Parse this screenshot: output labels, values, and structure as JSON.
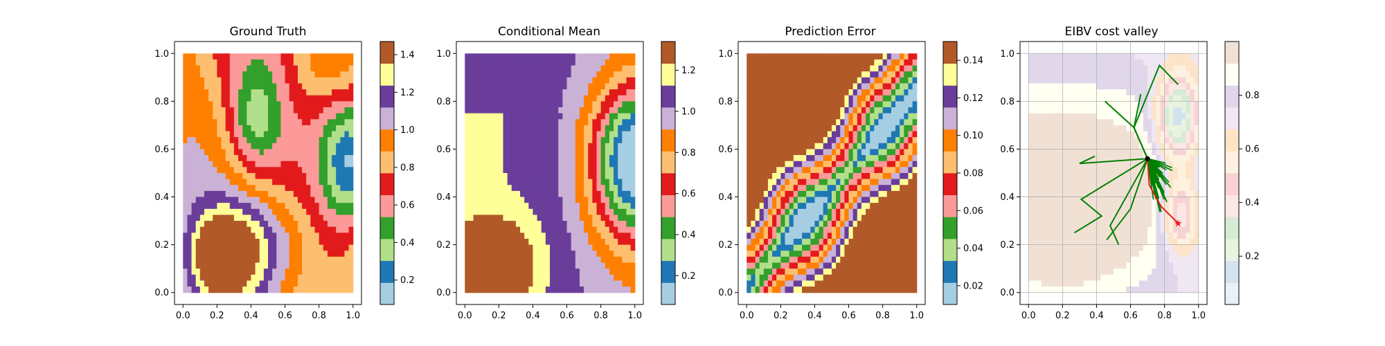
{
  "figure": {
    "background": "#ffffff"
  },
  "chart_data": [
    {
      "type": "heatmap",
      "title": "Ground Truth",
      "xlabel": "",
      "ylabel": "",
      "xlim": [
        -0.05,
        1.05
      ],
      "ylim": [
        -0.05,
        1.05
      ],
      "x_ticks": [
        "0.0",
        "0.2",
        "0.4",
        "0.6",
        "0.8",
        "1.0"
      ],
      "y_ticks": [
        "0.0",
        "0.2",
        "0.4",
        "0.6",
        "0.8",
        "1.0"
      ],
      "colorbar": {
        "cmap": "Paired",
        "ticks": [
          "0.2",
          "0.4",
          "0.6",
          "0.8",
          "1.0",
          "1.2",
          "1.4"
        ],
        "range": [
          0.07,
          1.47
        ]
      },
      "note_field": "filled contours"
    },
    {
      "type": "heatmap",
      "title": "Conditional Mean",
      "xlabel": "",
      "ylabel": "",
      "xlim": [
        -0.05,
        1.05
      ],
      "ylim": [
        -0.05,
        1.05
      ],
      "x_ticks": [
        "0.0",
        "0.2",
        "0.4",
        "0.6",
        "0.8",
        "1.0"
      ],
      "y_ticks": [
        "0.0",
        "0.2",
        "0.4",
        "0.6",
        "0.8",
        "1.0"
      ],
      "colorbar": {
        "cmap": "Paired",
        "ticks": [
          "0.2",
          "0.4",
          "0.6",
          "0.8",
          "1.0",
          "1.2"
        ],
        "range": [
          0.06,
          1.34
        ]
      }
    },
    {
      "type": "heatmap",
      "title": "Prediction Error",
      "xlabel": "",
      "ylabel": "",
      "xlim": [
        -0.05,
        1.05
      ],
      "ylim": [
        -0.05,
        1.05
      ],
      "x_ticks": [
        "0.0",
        "0.2",
        "0.4",
        "0.6",
        "0.8",
        "1.0"
      ],
      "y_ticks": [
        "0.0",
        "0.2",
        "0.4",
        "0.6",
        "0.8",
        "1.0"
      ],
      "colorbar": {
        "cmap": "Paired",
        "ticks": [
          "0.02",
          "0.04",
          "0.06",
          "0.08",
          "0.10",
          "0.12",
          "0.14"
        ],
        "range": [
          0.01,
          0.15
        ]
      }
    },
    {
      "type": "heatmap",
      "title": "EIBV cost valley",
      "xlabel": "",
      "ylabel": "",
      "xlim": [
        -0.05,
        1.05
      ],
      "ylim": [
        -0.05,
        1.05
      ],
      "x_ticks": [
        "0.0",
        "0.2",
        "0.4",
        "0.6",
        "0.8",
        "1.0"
      ],
      "y_ticks": [
        "0.0",
        "0.2",
        "0.4",
        "0.6",
        "0.8",
        "1.0"
      ],
      "grid": true,
      "colorbar": {
        "cmap": "Paired (faded)",
        "ticks": [
          "0.2",
          "0.4",
          "0.6",
          "0.8"
        ],
        "range": [
          0.02,
          1.0
        ]
      },
      "current_location": {
        "x": 0.7,
        "y": 0.56
      },
      "path_color": "#008000",
      "trajectory_color": "#e41a1c",
      "target_marker": {
        "x": 0.88,
        "y": 0.29
      }
    }
  ]
}
